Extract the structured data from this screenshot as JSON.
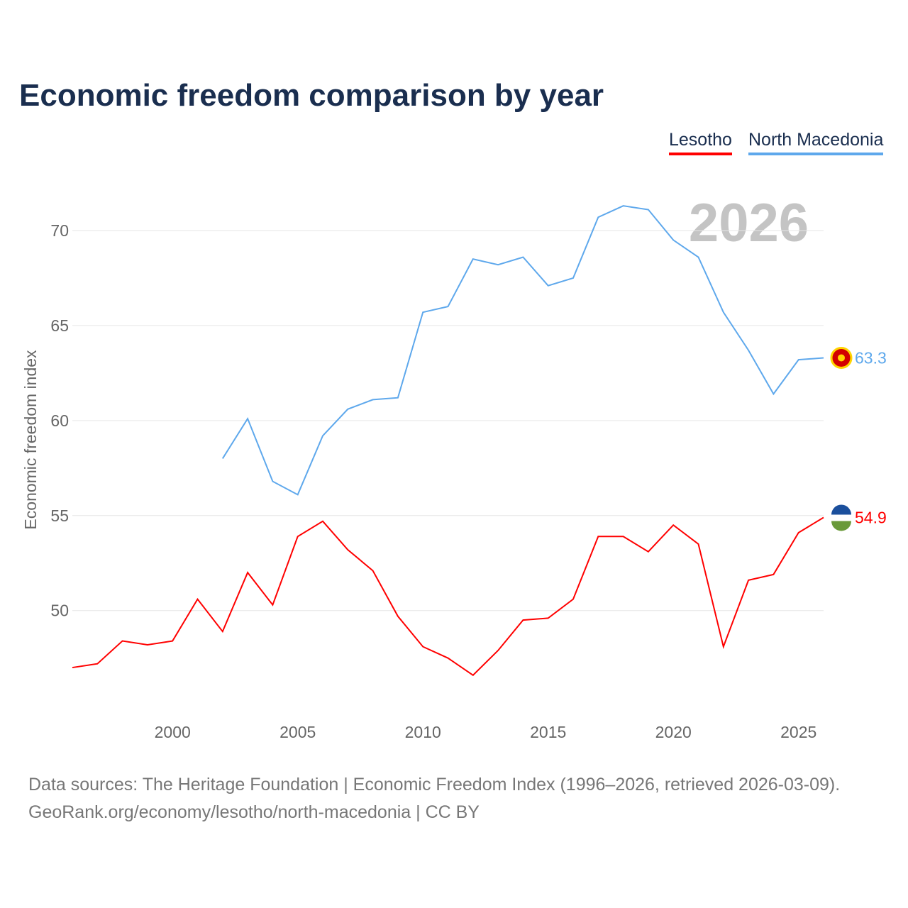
{
  "chart_data": {
    "type": "line",
    "title": "Economic freedom comparison by year",
    "ylabel": "Economic freedom index",
    "xlabel": "",
    "year_watermark": "2026",
    "xlim": [
      1996,
      2026
    ],
    "ylim": [
      44.8,
      72.8
    ],
    "xticks": [
      2000,
      2005,
      2010,
      2015,
      2020,
      2025
    ],
    "yticks": [
      50,
      55,
      60,
      65,
      70
    ],
    "grid": true,
    "legend_position": "top-right",
    "series": [
      {
        "name": "Lesotho",
        "color": "#ff0000",
        "end_label": "54.9",
        "x": [
          1996,
          1997,
          1998,
          1999,
          2000,
          2001,
          2002,
          2003,
          2004,
          2005,
          2006,
          2007,
          2008,
          2009,
          2010,
          2011,
          2012,
          2013,
          2014,
          2015,
          2016,
          2017,
          2018,
          2019,
          2020,
          2021,
          2022,
          2023,
          2024,
          2025,
          2026
        ],
        "values": [
          47.0,
          47.2,
          48.4,
          48.2,
          48.4,
          50.6,
          48.9,
          52.0,
          50.3,
          53.9,
          54.7,
          53.2,
          52.1,
          49.7,
          48.1,
          47.5,
          46.6,
          47.9,
          49.5,
          49.6,
          50.6,
          53.9,
          53.9,
          53.1,
          54.5,
          53.5,
          48.1,
          51.6,
          51.9,
          54.1,
          54.9
        ]
      },
      {
        "name": "North Macedonia",
        "color": "#5ea8ec",
        "end_label": "63.3",
        "x": [
          2002,
          2003,
          2004,
          2005,
          2006,
          2007,
          2008,
          2009,
          2010,
          2011,
          2012,
          2013,
          2014,
          2015,
          2016,
          2017,
          2018,
          2019,
          2020,
          2021,
          2022,
          2023,
          2024,
          2025,
          2026
        ],
        "values": [
          58.0,
          60.1,
          56.8,
          56.1,
          59.2,
          60.6,
          61.1,
          61.2,
          65.7,
          66.0,
          68.5,
          68.2,
          68.6,
          67.1,
          67.5,
          70.7,
          71.3,
          71.1,
          69.5,
          68.6,
          65.7,
          63.7,
          61.4,
          63.2,
          63.3
        ]
      }
    ]
  },
  "footer": {
    "line1": "Data sources: The Heritage Foundation | Economic Freedom Index (1996–2026, retrieved 2026-03-09).",
    "line2": "GeoRank.org/economy/lesotho/north-macedonia | CC BY"
  }
}
